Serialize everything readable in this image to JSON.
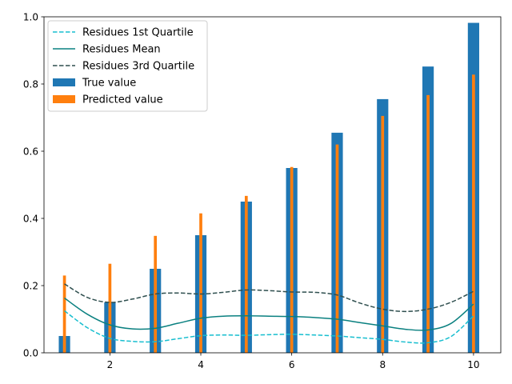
{
  "chart_data": {
    "type": "bar",
    "x": [
      1,
      2,
      3,
      4,
      5,
      6,
      7,
      8,
      9,
      10
    ],
    "series": [
      {
        "name": "True value",
        "kind": "bar",
        "color": "#1f77b4",
        "values": [
          0.05,
          0.15,
          0.25,
          0.35,
          0.45,
          0.55,
          0.655,
          0.755,
          0.852,
          0.982
        ]
      },
      {
        "name": "Predicted value",
        "kind": "bar",
        "color": "#ff7f0e",
        "values": [
          0.23,
          0.265,
          0.348,
          0.415,
          0.467,
          0.553,
          0.62,
          0.705,
          0.767,
          0.828
        ]
      },
      {
        "name": "Residues 1st Quartile",
        "kind": "line",
        "style": "dashed",
        "color": "#17becf",
        "x": [
          1,
          1.5,
          2,
          2.5,
          3,
          3.5,
          4,
          4.5,
          5,
          5.5,
          6,
          6.5,
          7,
          7.5,
          8,
          8.5,
          9,
          9.5,
          10
        ],
        "values": [
          0.125,
          0.075,
          0.043,
          0.034,
          0.033,
          0.042,
          0.051,
          0.053,
          0.052,
          0.054,
          0.055,
          0.053,
          0.05,
          0.045,
          0.04,
          0.032,
          0.03,
          0.048,
          0.11
        ]
      },
      {
        "name": "Residues Mean",
        "kind": "line",
        "style": "solid",
        "color": "#0a8080",
        "x": [
          1,
          1.5,
          2,
          2.5,
          3,
          3.5,
          4,
          4.5,
          5,
          5.5,
          6,
          6.5,
          7,
          7.5,
          8,
          8.5,
          9,
          9.5,
          10
        ],
        "values": [
          0.163,
          0.115,
          0.083,
          0.071,
          0.073,
          0.088,
          0.103,
          0.109,
          0.11,
          0.109,
          0.108,
          0.105,
          0.1,
          0.09,
          0.08,
          0.07,
          0.068,
          0.087,
          0.145
        ]
      },
      {
        "name": "Residues 3rd Quartile",
        "kind": "line",
        "style": "dashed",
        "color": "#2f4f4f",
        "x": [
          1,
          1.5,
          2,
          2.5,
          3,
          3.5,
          4,
          4.5,
          5,
          5.5,
          6,
          6.5,
          7,
          7.5,
          8,
          8.5,
          9,
          9.5,
          10
        ],
        "values": [
          0.205,
          0.165,
          0.15,
          0.16,
          0.175,
          0.178,
          0.175,
          0.18,
          0.187,
          0.185,
          0.181,
          0.18,
          0.172,
          0.148,
          0.13,
          0.123,
          0.13,
          0.15,
          0.183
        ]
      }
    ],
    "xlabel": "",
    "ylabel": "",
    "xlim": [
      0.55,
      10.6
    ],
    "ylim": [
      0,
      1.0
    ],
    "xticks": [
      "2",
      "4",
      "6",
      "8",
      "10"
    ],
    "yticks": [
      "0.0",
      "0.2",
      "0.4",
      "0.6",
      "0.8",
      "1.0"
    ],
    "grid": false,
    "legend_position": "upper-left",
    "legend_order": [
      "Residues 1st Quartile",
      "Residues Mean",
      "Residues 3rd Quartile",
      "True value",
      "Predicted value"
    ]
  }
}
